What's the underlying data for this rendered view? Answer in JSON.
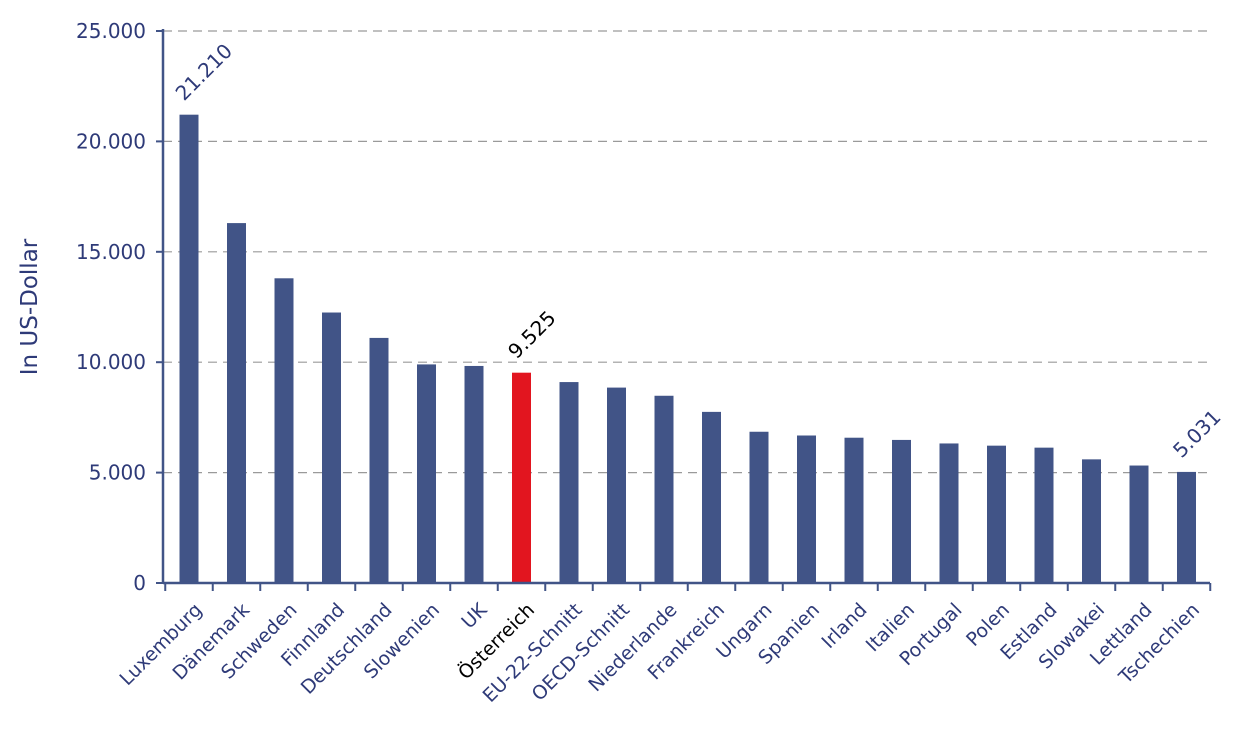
{
  "chart_data": {
    "type": "bar",
    "title": "",
    "xlabel": "",
    "ylabel": "In US-Dollar",
    "ylim": [
      0,
      25000
    ],
    "yticks": [
      0,
      5000,
      10000,
      15000,
      20000,
      25000
    ],
    "ytick_labels": [
      "0",
      "5.000",
      "10.000",
      "15.000",
      "20.000",
      "25.000"
    ],
    "grid": "horizontal-dashed",
    "categories": [
      "Luxemburg",
      "Dänemark",
      "Schweden",
      "Finnland",
      "Deutschland",
      "Slowenien",
      "UK",
      "Österreich",
      "EU-22-Schnitt",
      "OECD-Schnitt",
      "Niederlande",
      "Frankreich",
      "Ungarn",
      "Spanien",
      "Irland",
      "Italien",
      "Portugal",
      "Polen",
      "Estland",
      "Slowakei",
      "Lettland",
      "Tschechien"
    ],
    "values": [
      21210,
      16300,
      13800,
      12250,
      11100,
      9900,
      9830,
      9525,
      9100,
      8850,
      8480,
      7750,
      6850,
      6680,
      6580,
      6480,
      6320,
      6220,
      6130,
      5600,
      5320,
      5031
    ],
    "highlight_index": 7,
    "data_labels": [
      {
        "index": 0,
        "text": "21.210"
      },
      {
        "index": 7,
        "text": "9.525"
      },
      {
        "index": 21,
        "text": "5.031"
      }
    ]
  },
  "colors": {
    "bar": "#415487",
    "highlight": "#e2151f",
    "text": "#2e3a78",
    "axis": "#415487",
    "grid": "#9a9a9a",
    "highlight_text": "#000000"
  }
}
